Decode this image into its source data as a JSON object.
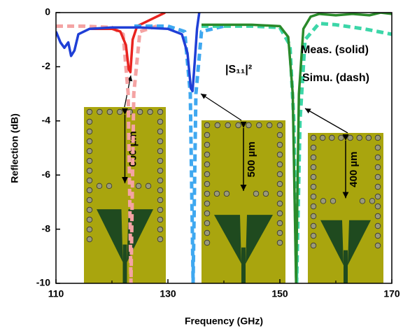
{
  "chart_data": {
    "type": "line",
    "xlabel": "Frequency (GHz)",
    "ylabel": "Reflection (dB)",
    "xlim": [
      110,
      170
    ],
    "xticks": [
      110,
      130,
      150,
      170
    ],
    "xminorticks": [
      120,
      140,
      160
    ],
    "ylim": [
      -10,
      0
    ],
    "yticks": [
      0,
      -2,
      -4,
      -6,
      -8,
      -10
    ],
    "annotations": [
      "|S₁₁|²",
      "Meas. (solid)",
      "Simu. (dash)"
    ],
    "inset_labels": [
      "600 µm",
      "500 µm",
      "400 µm"
    ],
    "series": [
      {
        "color": "#f4a3a3",
        "dash": true,
        "x": [
          110,
          115,
          120,
          122,
          122.9,
          123.4,
          123.9,
          125,
          128
        ],
        "values": [
          -0.5,
          -0.5,
          -0.55,
          -0.8,
          -3,
          -10,
          -3,
          -0.7,
          -0.5
        ]
      },
      {
        "color": "#e8231f",
        "dash": false,
        "x": [
          116,
          118,
          120,
          121.5,
          122.5,
          123,
          123.3,
          123.7,
          124.5,
          126,
          128,
          129.5
        ],
        "values": [
          -0.6,
          -0.6,
          -0.6,
          -0.7,
          -1.2,
          -2.1,
          -2.2,
          -1.0,
          -0.5,
          -0.35,
          -0.15,
          0
        ]
      },
      {
        "color": "#3fa8f0",
        "dash": true,
        "x": [
          124,
          130,
          133,
          134,
          134.5,
          135,
          136,
          140
        ],
        "values": [
          -0.5,
          -0.5,
          -0.7,
          -3,
          -10,
          -3,
          -0.7,
          -0.5
        ]
      },
      {
        "color": "#1f3fd6",
        "dash": false,
        "x": [
          110,
          110.8,
          111.5,
          112.2,
          112.7,
          113.3,
          114,
          116,
          120,
          125,
          130,
          132.5,
          133.5,
          134.1,
          134.4,
          134.8,
          135.2,
          135.6
        ],
        "values": [
          -0.7,
          -1.1,
          -1.3,
          -1.1,
          -1.6,
          -1.4,
          -0.8,
          -0.6,
          -0.55,
          -0.55,
          -0.6,
          -0.8,
          -1.5,
          -2.8,
          -2.9,
          -1.8,
          -0.6,
          0
        ]
      },
      {
        "color": "#3cd6a8",
        "dash": true,
        "x": [
          136,
          140,
          145,
          150,
          151.8,
          152.5,
          153,
          153.6,
          154.5,
          157,
          160,
          165,
          170
        ],
        "values": [
          -0.5,
          -0.5,
          -0.5,
          -0.55,
          -1.2,
          -4,
          -10,
          -4,
          -1,
          -0.4,
          -0.45,
          -0.6,
          -0.8
        ]
      },
      {
        "color": "#2a8a2a",
        "dash": false,
        "x": [
          136,
          140,
          145,
          150,
          151.5,
          152.3,
          152.9,
          153.4,
          154.2,
          155.5,
          157,
          160,
          163,
          166,
          168,
          170
        ],
        "values": [
          -0.45,
          -0.45,
          -0.45,
          -0.5,
          -0.9,
          -3,
          -10,
          -3,
          -0.6,
          -0.15,
          -0.05,
          -0.1,
          -0.05,
          -0.1,
          0,
          -0.05
        ]
      }
    ]
  }
}
